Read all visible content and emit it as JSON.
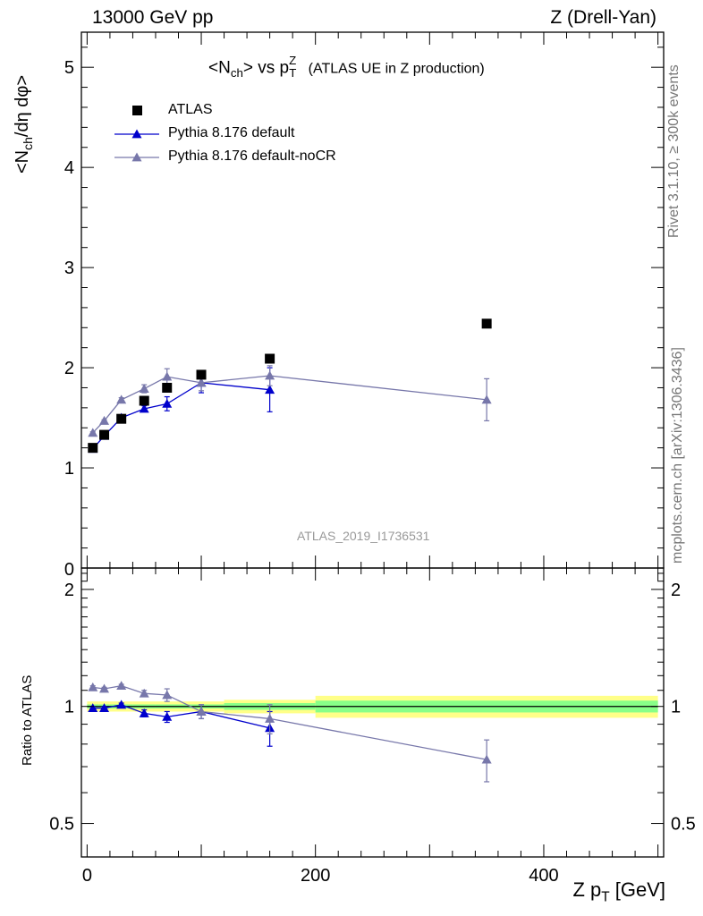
{
  "header": {
    "left": "13000 GeV pp",
    "right": "Z (Drell-Yan)"
  },
  "side_labels": {
    "rivet": "Rivet 3.1.10, ≥ 300k events",
    "mcplots": "mcplots.cern.ch [arXiv:1306.3436]"
  },
  "chart_data": {
    "type": "scatter",
    "title_main": "<N",
    "title_sub_ch": "ch",
    "title_mid": "> vs p",
    "title_sup_Z": "Z",
    "title_sub_T": "T",
    "title_tail": "(ATLAS UE in Z production)",
    "analysis_id": "ATLAS_2019_I1736531",
    "ylabel": "<N_ch/dη dφ>",
    "ylabel_parts": {
      "a": "<N",
      "sub": "ch",
      "b": "/dη dφ>"
    },
    "ratio_ylabel": "Ratio to ATLAS",
    "xlabel_parts": {
      "a": "Z p",
      "sub": "T",
      "b": " [GeV]"
    },
    "xlim": [
      -5,
      505
    ],
    "ylim": [
      0,
      5.35
    ],
    "ratio_ylim": [
      0.41,
      2.27
    ],
    "x_ticks": [
      "0",
      "200",
      "400"
    ],
    "x_tick_values": [
      0,
      200,
      400
    ],
    "y_ticks": [
      "1",
      "2",
      "3",
      "4",
      "5"
    ],
    "y_tick_values": [
      1,
      2,
      3,
      4,
      5
    ],
    "y_zero_label": "0",
    "ratio_ticks": [
      "0.5",
      "1",
      "2"
    ],
    "ratio_tick_values": [
      0.5,
      1,
      2
    ],
    "colors": {
      "data": "#000000",
      "default": "#0000cc",
      "noCR": "#7777aa",
      "band_yellow": "#ffff88",
      "band_green": "#88ff88"
    },
    "legend": [
      {
        "label": "ATLAS",
        "key": "data"
      },
      {
        "label": "Pythia 8.176 default",
        "key": "default"
      },
      {
        "label": "Pythia 8.176 default-noCR",
        "key": "noCR"
      }
    ],
    "data": {
      "name": "ATLAS",
      "x": [
        5,
        15,
        30,
        50,
        70,
        100,
        160,
        350
      ],
      "xlow": [
        0,
        10,
        20,
        40,
        60,
        80,
        120,
        200
      ],
      "xhigh": [
        10,
        20,
        40,
        60,
        80,
        120,
        200,
        500
      ],
      "y": [
        1.2,
        1.33,
        1.49,
        1.67,
        1.8,
        1.93,
        2.09,
        2.44
      ],
      "rel_err_stat": [
        0.012,
        0.012,
        0.012,
        0.012,
        0.012,
        0.012,
        0.02,
        0.035
      ],
      "rel_err_tot": [
        0.03,
        0.03,
        0.03,
        0.03,
        0.03,
        0.03,
        0.04,
        0.065
      ]
    },
    "series": [
      {
        "name": "Pythia 8.176 default",
        "key": "default",
        "x": [
          5,
          15,
          30,
          50,
          70,
          100,
          160
        ],
        "y": [
          1.19,
          1.32,
          1.5,
          1.59,
          1.64,
          1.85,
          1.78
        ],
        "yerr": [
          0.02,
          0.02,
          0.02,
          0.03,
          0.07,
          0.1,
          0.22
        ],
        "ratio": [
          0.99,
          0.99,
          1.01,
          0.96,
          0.94,
          0.97,
          0.88
        ],
        "ratio_err": [
          0.01,
          0.01,
          0.01,
          0.02,
          0.03,
          0.04,
          0.09
        ]
      },
      {
        "name": "Pythia 8.176 default-noCR",
        "key": "noCR",
        "x": [
          5,
          15,
          30,
          50,
          70,
          100,
          160,
          350
        ],
        "y": [
          1.35,
          1.47,
          1.68,
          1.79,
          1.91,
          1.85,
          1.92,
          1.68
        ],
        "yerr": [
          0.01,
          0.01,
          0.02,
          0.04,
          0.08,
          0.08,
          0.1,
          0.21
        ],
        "ratio": [
          1.12,
          1.11,
          1.13,
          1.08,
          1.07,
          0.97,
          0.93,
          0.73
        ],
        "ratio_err": [
          0.01,
          0.01,
          0.01,
          0.02,
          0.04,
          0.04,
          0.08,
          0.09
        ]
      }
    ]
  }
}
